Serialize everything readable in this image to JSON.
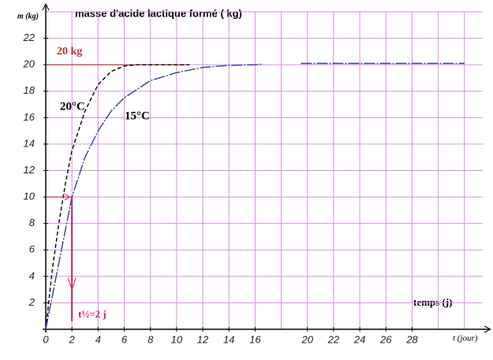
{
  "chart_data": {
    "type": "line",
    "title": "masse d'acide lactique formé ( kg)",
    "y_label": "m (kg)",
    "x_label": "t (jour)",
    "x_caption": "temps (j)",
    "xlim": [
      0,
      33.4
    ],
    "ylim": [
      0,
      24
    ],
    "xticks": [
      0,
      2,
      4,
      6,
      8,
      10,
      12,
      14,
      16,
      20,
      22,
      24,
      26,
      28
    ],
    "yticks": [
      2,
      4,
      6,
      8,
      10,
      12,
      14,
      16,
      18,
      20,
      22
    ],
    "xgrid": [
      2,
      4,
      6,
      8,
      10,
      12,
      14,
      16,
      18,
      20,
      22,
      24,
      26,
      28,
      30,
      32
    ],
    "ygrid": [
      2,
      4,
      6,
      8,
      10,
      12,
      14,
      16,
      18,
      20,
      22,
      24
    ],
    "grid_color": "#d68fe0",
    "series": [
      {
        "name": "20°C",
        "color": "#000000",
        "dashed": true,
        "x": [
          0,
          0.5,
          1,
          1.5,
          2,
          3,
          4,
          5,
          6,
          7,
          8,
          9,
          10,
          11
        ],
        "values": [
          0,
          4.5,
          8,
          11,
          13.5,
          16.5,
          18.5,
          19.5,
          19.9,
          20,
          20,
          20,
          20,
          20
        ]
      },
      {
        "name": "15°C",
        "color": "#3a3aa8",
        "dashed": false,
        "x": [
          0,
          1,
          2,
          3,
          4,
          5,
          6,
          8,
          10,
          12,
          14,
          16,
          16.6,
          18,
          19.5,
          24,
          28,
          32
        ],
        "values": [
          0,
          5,
          10,
          13,
          15,
          16.5,
          17.5,
          18.8,
          19.4,
          19.8,
          19.95,
          20,
          20.05,
          null,
          20.1,
          20.1,
          20.1,
          20.1
        ]
      }
    ],
    "asymptote": {
      "value": 20,
      "label": "20 kg",
      "x_end": 11,
      "color": "#b03030"
    },
    "half_life": {
      "x": 2,
      "y": 10,
      "label": "t½=2 j",
      "color": "#d02060"
    }
  }
}
